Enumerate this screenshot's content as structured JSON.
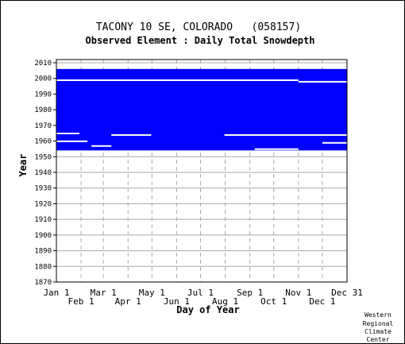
{
  "chart_data": {
    "type": "heatmap",
    "title": "TACONY 10 SE, COLORADO   (058157)",
    "subtitle": "Observed Element : Daily Total Snowdepth",
    "xlabel": "Day of Year",
    "ylabel": "Year",
    "xlim": [
      1,
      366
    ],
    "ylim": [
      1870,
      2012
    ],
    "y_ticks": [
      1870,
      1880,
      1890,
      1900,
      1910,
      1920,
      1930,
      1940,
      1950,
      1960,
      1970,
      1980,
      1990,
      2000,
      2010
    ],
    "x_ticks_upper": [
      {
        "label": "Jan 1",
        "day": 1
      },
      {
        "label": "Mar 1",
        "day": 60
      },
      {
        "label": "May 1",
        "day": 121
      },
      {
        "label": "Jul 1",
        "day": 182
      },
      {
        "label": "Sep 1",
        "day": 244
      },
      {
        "label": "Nov 1",
        "day": 305
      },
      {
        "label": "Dec 31",
        "day": 366
      }
    ],
    "x_ticks_lower": [
      {
        "label": "Feb 1",
        "day": 32
      },
      {
        "label": "Apr 1",
        "day": 91
      },
      {
        "label": "Jun 1",
        "day": 152
      },
      {
        "label": "Aug 1",
        "day": 213
      },
      {
        "label": "Oct 1",
        "day": 274
      },
      {
        "label": "Dec 1",
        "day": 335
      }
    ],
    "data_color": "#0000ff",
    "coverage": {
      "year_start": 1954,
      "year_end": 2006,
      "day_start": 1,
      "day_end": 366
    },
    "missing_gaps": [
      {
        "year": 1999,
        "day_start": 1,
        "day_end": 182
      },
      {
        "year": 1999,
        "day_start": 182,
        "day_end": 305
      },
      {
        "year": 1998,
        "day_start": 305,
        "day_end": 366
      },
      {
        "year": 1965,
        "day_start": 1,
        "day_end": 30
      },
      {
        "year": 1964,
        "day_start": 70,
        "day_end": 120
      },
      {
        "year": 1964,
        "day_start": 212,
        "day_end": 366
      },
      {
        "year": 1960,
        "day_start": 1,
        "day_end": 40
      },
      {
        "year": 1959,
        "day_start": 335,
        "day_end": 366
      },
      {
        "year": 1955,
        "day_start": 250,
        "day_end": 305
      },
      {
        "year": 1957,
        "day_start": 45,
        "day_end": 70
      }
    ],
    "grid": true,
    "legend": "none",
    "credit": [
      "Western",
      "Regional",
      "Climate",
      "Center"
    ]
  }
}
